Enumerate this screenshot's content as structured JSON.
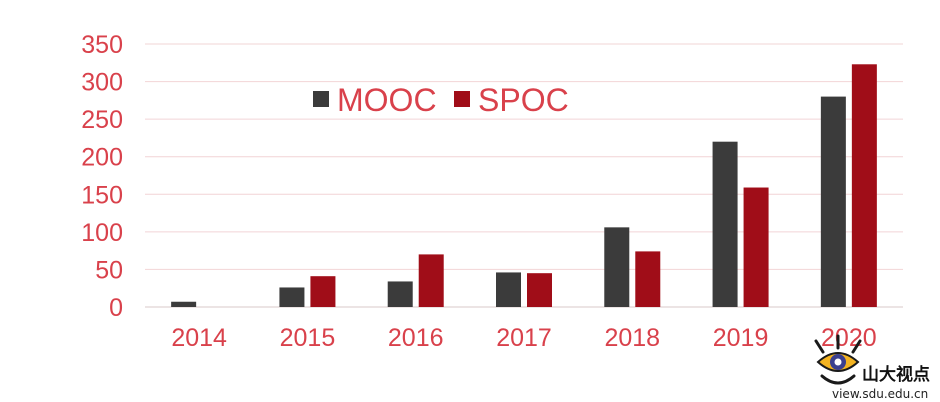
{
  "chart_data": {
    "type": "bar",
    "categories": [
      "2014",
      "2015",
      "2016",
      "2017",
      "2018",
      "2019",
      "2020"
    ],
    "series": [
      {
        "name": "MOOC",
        "values": [
          7,
          26,
          34,
          46,
          106,
          220,
          280
        ]
      },
      {
        "name": "SPOC",
        "values": [
          0,
          41,
          70,
          45,
          74,
          159,
          323
        ]
      }
    ],
    "ylim": [
      0,
      350
    ],
    "yticks": [
      0,
      50,
      100,
      150,
      200,
      250,
      300,
      350
    ],
    "grid": true,
    "legend_position": "top-left",
    "title": "",
    "xlabel": "",
    "ylabel": ""
  },
  "colors": {
    "MOOC": "#3b3b3b",
    "SPOC": "#a00d18",
    "tick_labels": "#d9414b",
    "gridline": "#f2d4d6"
  },
  "watermark": {
    "brand": "山大视点",
    "url": "view.sdu.edu.cn",
    "icon": "eye-logo-icon"
  }
}
